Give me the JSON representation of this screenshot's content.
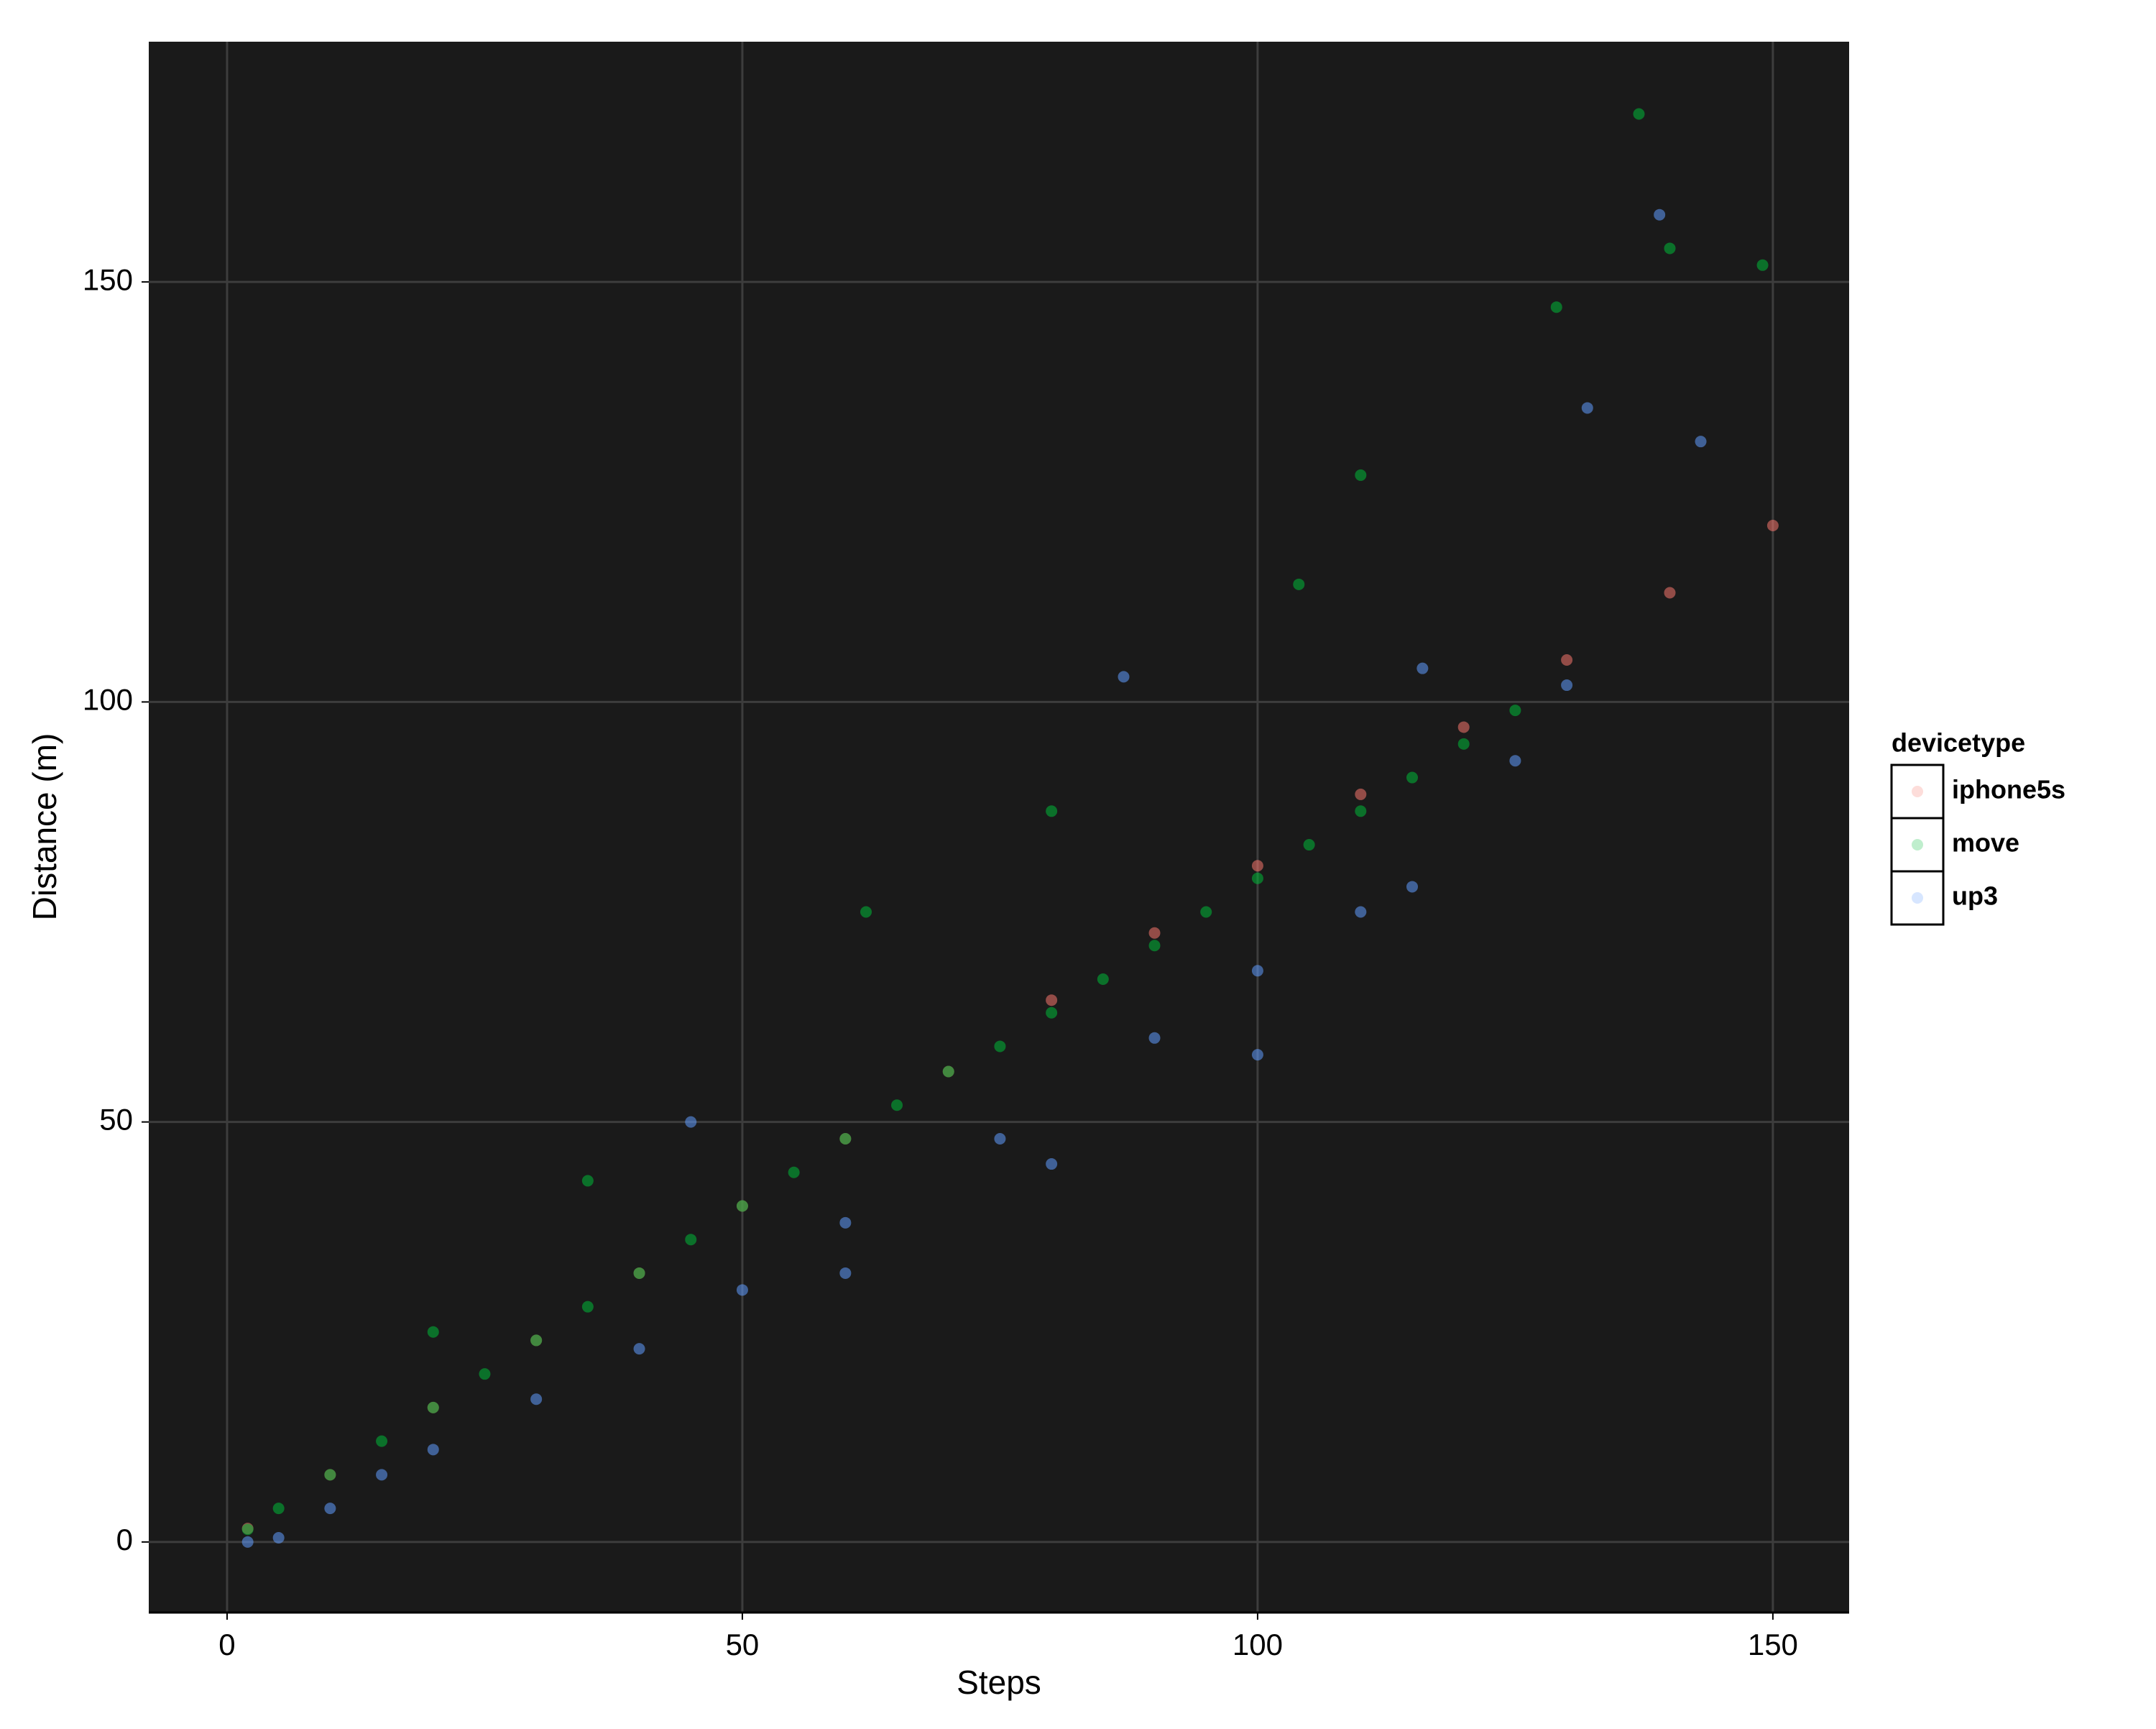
{
  "chart_data": {
    "type": "scatter",
    "x_label": "Steps",
    "y_label": "Distance (m)",
    "legend_title": "devicetype",
    "legend_position": "right",
    "xlim": [
      -7.6,
      157.4
    ],
    "ylim": [
      -8.4,
      178.6
    ],
    "xticks": [
      0,
      50,
      100,
      150
    ],
    "yticks": [
      0,
      50,
      100,
      150
    ],
    "grid": true,
    "background": "#1a1a1a",
    "series": [
      {
        "name": "iphone5s",
        "color": "#F8766D",
        "x": [
          2,
          10,
          20,
          30,
          40,
          50,
          60,
          70,
          80,
          90,
          100,
          110,
          120,
          130,
          140,
          150
        ],
        "values": [
          1.6,
          8,
          16,
          24,
          32,
          40,
          48,
          56,
          64.5,
          72.5,
          80.5,
          89,
          97,
          105,
          113,
          121
        ]
      },
      {
        "name": "move",
        "color": "#00BA38",
        "x": [
          2,
          5,
          10,
          15,
          20,
          25,
          30,
          35,
          40,
          45,
          50,
          55,
          60,
          65,
          70,
          75,
          80,
          85,
          90,
          95,
          100,
          105,
          110,
          115,
          120,
          125,
          137,
          140,
          149,
          129,
          110,
          104,
          80,
          62,
          35,
          20
        ],
        "values": [
          1.5,
          4,
          8,
          12,
          16,
          20,
          24,
          28,
          32,
          36,
          40,
          44,
          48,
          52,
          56,
          59,
          63,
          67,
          71,
          75,
          79,
          83,
          87,
          91,
          95,
          99,
          170,
          154,
          152,
          147,
          127,
          114,
          87,
          75,
          43,
          25
        ]
      },
      {
        "name": "up3",
        "color": "#619CFF",
        "x": [
          2,
          5,
          10,
          15,
          20,
          30,
          40,
          50,
          60,
          75,
          90,
          100,
          110,
          115,
          125,
          130,
          139,
          143,
          132,
          87,
          116,
          45,
          100,
          80,
          60
        ],
        "values": [
          0,
          0.5,
          4,
          8,
          11,
          17,
          23,
          30,
          38,
          48,
          60,
          68,
          75,
          78,
          93,
          102,
          158,
          131,
          135,
          103,
          104,
          50,
          58,
          45,
          32
        ]
      }
    ]
  }
}
